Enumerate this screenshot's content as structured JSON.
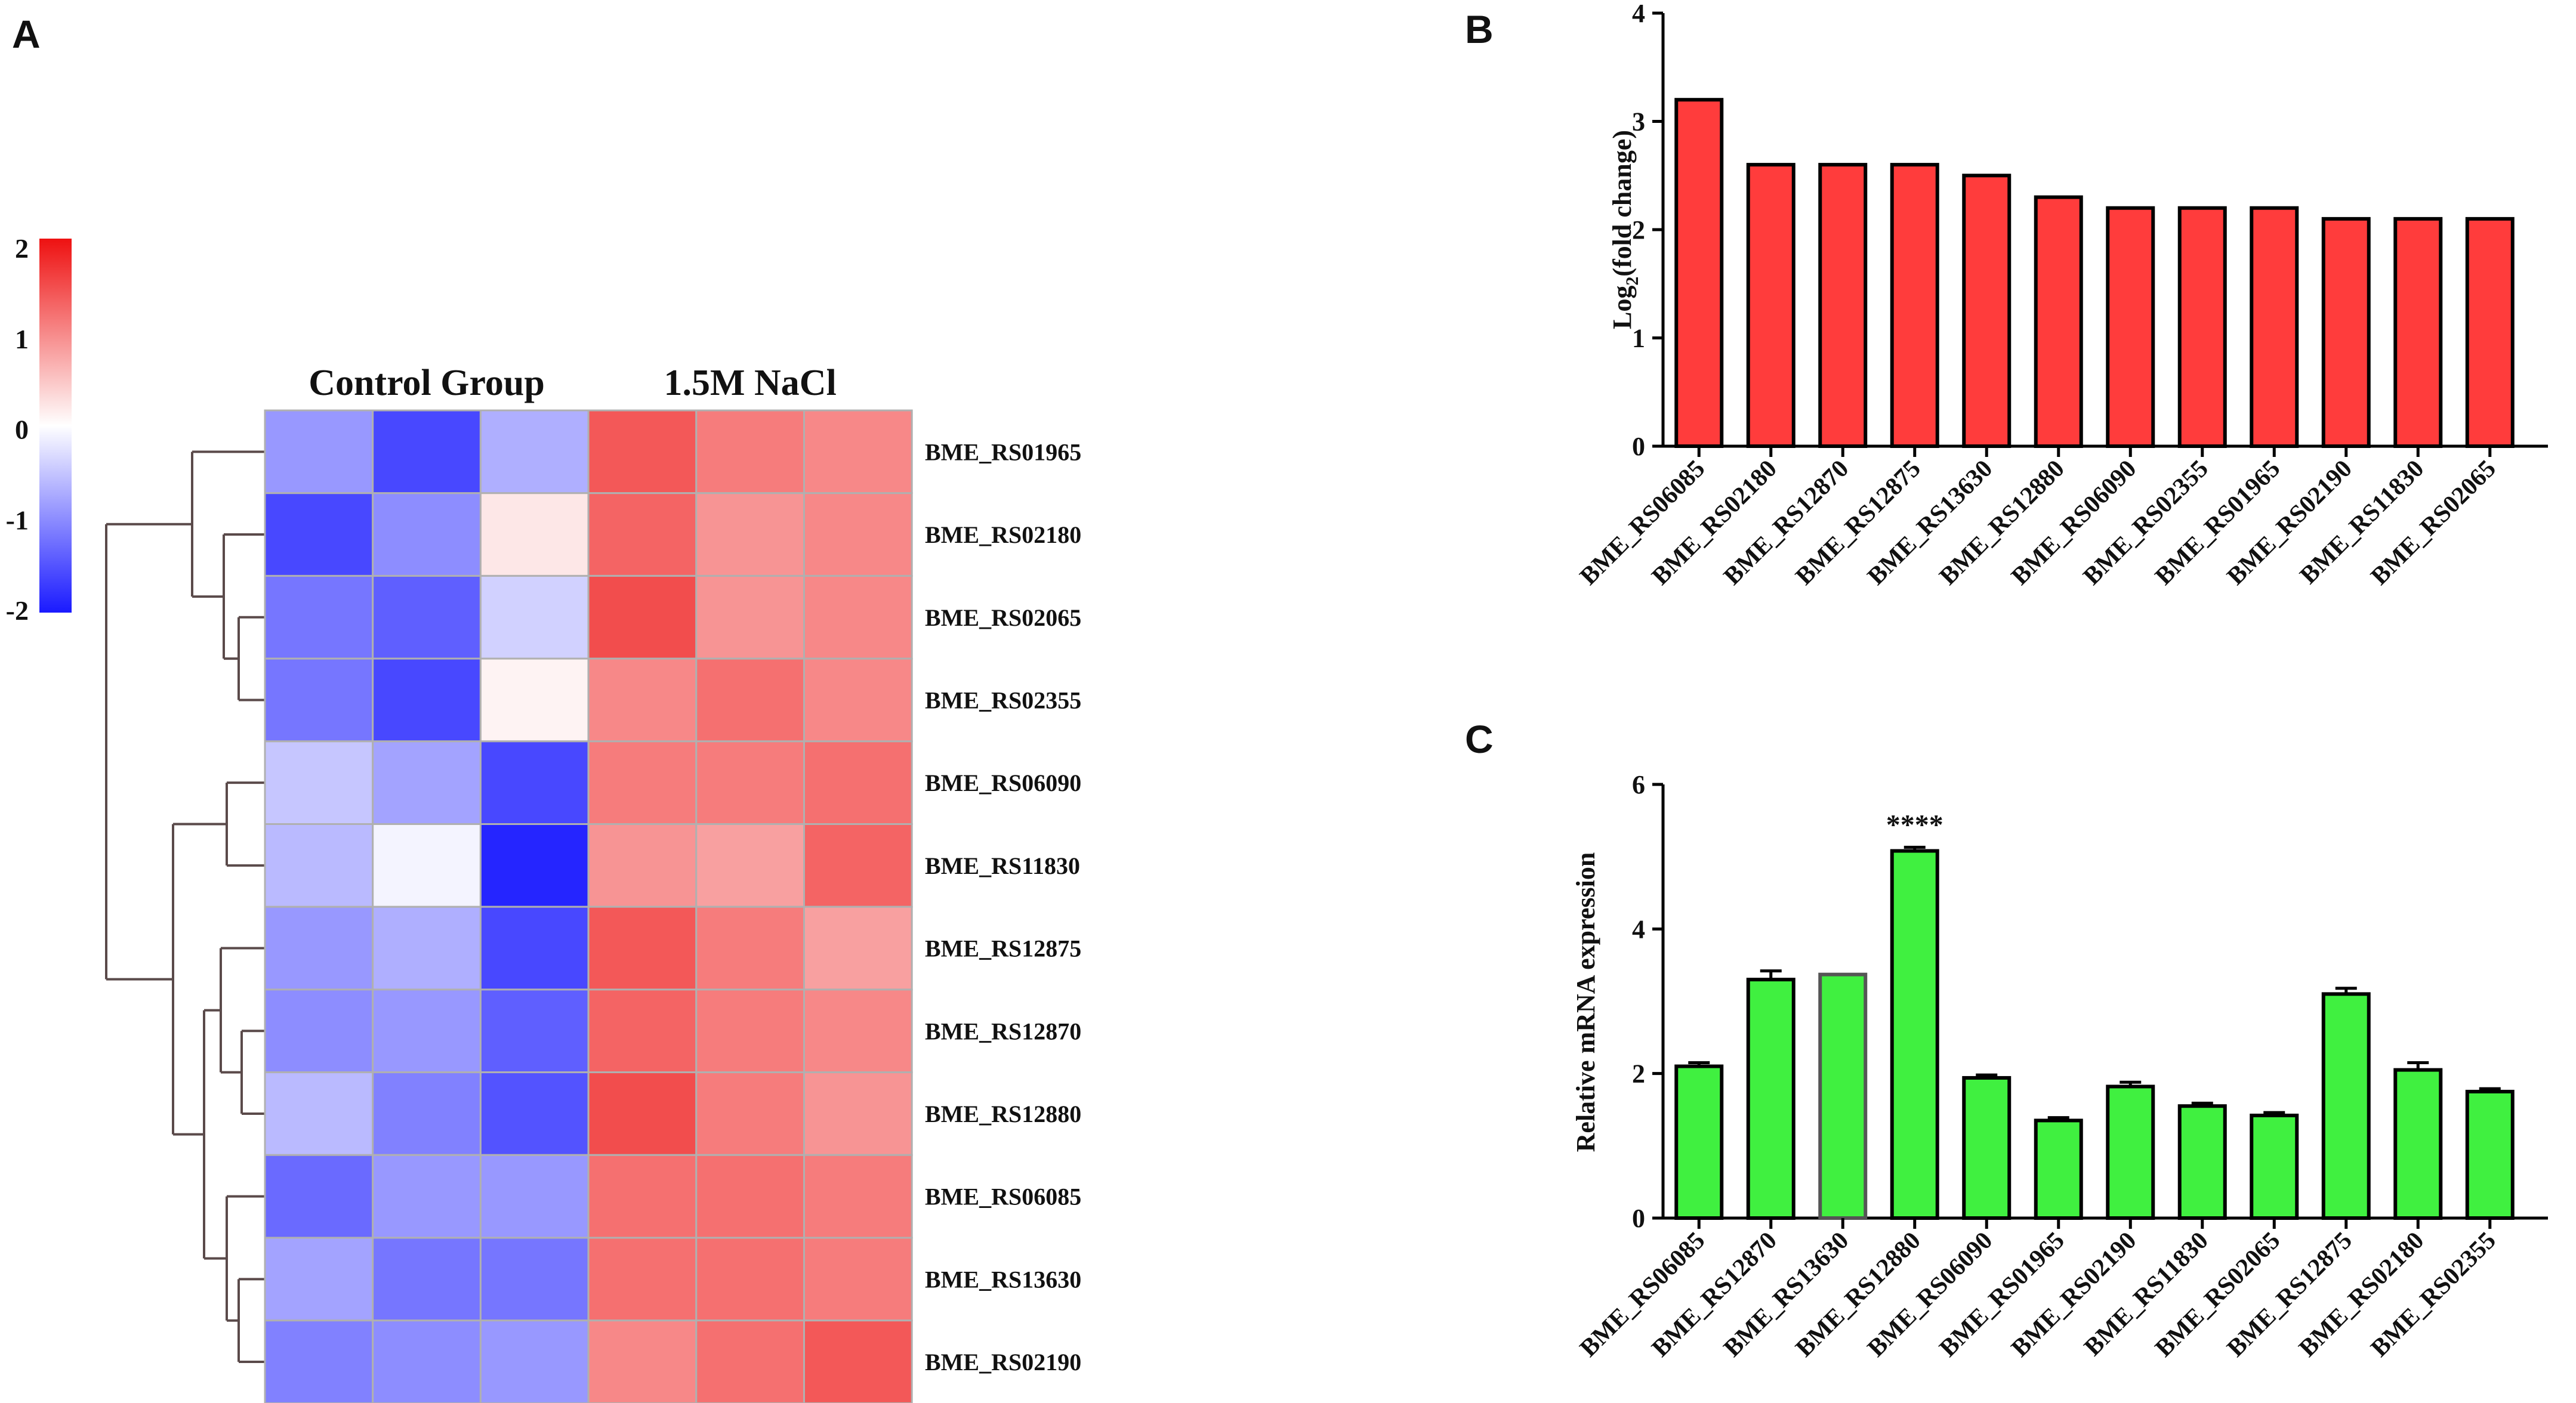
{
  "figure": {
    "panels": [
      {
        "id": "A",
        "label": "A"
      },
      {
        "id": "B",
        "label": "B"
      },
      {
        "id": "C",
        "label": "C"
      }
    ]
  },
  "chart_data": [
    {
      "panel": "A",
      "type": "heatmap",
      "column_groups": [
        "Control Group",
        "1.5M NaCl"
      ],
      "columns_per_group": 3,
      "rows": [
        "BME_RS01965",
        "BME_RS02180",
        "BME_RS02065",
        "BME_RS02355",
        "BME_RS06090",
        "BME_RS11830",
        "BME_RS12875",
        "BME_RS12870",
        "BME_RS12880",
        "BME_RS06085",
        "BME_RS13630",
        "BME_RS02190"
      ],
      "values": [
        [
          -0.9,
          -1.6,
          -0.7,
          1.4,
          1.1,
          1.0
        ],
        [
          -1.6,
          -1.0,
          0.2,
          1.3,
          0.9,
          1.0
        ],
        [
          -1.2,
          -1.4,
          -0.4,
          1.5,
          0.9,
          1.0
        ],
        [
          -1.2,
          -1.6,
          0.1,
          1.0,
          1.2,
          1.0
        ],
        [
          -0.5,
          -0.8,
          -1.6,
          1.1,
          1.1,
          1.2
        ],
        [
          -0.6,
          -0.1,
          -1.9,
          0.9,
          0.8,
          1.3
        ],
        [
          -0.9,
          -0.7,
          -1.6,
          1.4,
          1.1,
          0.8
        ],
        [
          -1.0,
          -0.9,
          -1.4,
          1.3,
          1.1,
          1.0
        ],
        [
          -0.6,
          -1.1,
          -1.5,
          1.5,
          1.1,
          0.9
        ],
        [
          -1.3,
          -0.9,
          -0.9,
          1.2,
          1.2,
          1.1
        ],
        [
          -0.8,
          -1.2,
          -1.2,
          1.2,
          1.2,
          1.1
        ],
        [
          -1.1,
          -1.0,
          -0.9,
          1.0,
          1.2,
          1.4
        ]
      ],
      "colorbar": {
        "ticks": [
          "2",
          "1",
          "0",
          "-1",
          "-2"
        ],
        "range": [
          -2,
          2
        ],
        "low_color": "#1a1aff",
        "mid_color": "#ffffff",
        "high_color": "#ee1111"
      },
      "dendrogram": "left"
    },
    {
      "panel": "B",
      "type": "bar",
      "ylabel": "Log2(fold change)",
      "ylabel_main": "Log",
      "ylabel_sub": "2",
      "ylabel_rest": "(fold change)",
      "ylim": [
        0,
        4
      ],
      "yticks": [
        "0",
        "1",
        "2",
        "3",
        "4"
      ],
      "categories": [
        "BME_RS06085",
        "BME_RS02180",
        "BME_RS12870",
        "BME_RS12875",
        "BME_RS13630",
        "BME_RS12880",
        "BME_RS06090",
        "BME_RS02355",
        "BME_RS01965",
        "BME_RS02190",
        "BME_RS11830",
        "BME_RS02065"
      ],
      "values": [
        3.2,
        2.6,
        2.6,
        2.6,
        2.5,
        2.3,
        2.2,
        2.2,
        2.2,
        2.1,
        2.1,
        2.1
      ],
      "bar_color": "#ff3c3c"
    },
    {
      "panel": "C",
      "type": "bar",
      "ylabel": "Relative mRNA expression",
      "ylim": [
        0,
        6
      ],
      "yticks": [
        "0",
        "2",
        "4",
        "6"
      ],
      "categories": [
        "BME_RS06085",
        "BME_RS12870",
        "BME_RS13630",
        "BME_RS12880",
        "BME_RS06090",
        "BME_RS01965",
        "BME_RS02190",
        "BME_RS11830",
        "BME_RS02065",
        "BME_RS12875",
        "BME_RS02180",
        "BME_RS02355"
      ],
      "values": [
        2.1,
        3.3,
        3.37,
        5.08,
        1.94,
        1.35,
        1.82,
        1.55,
        1.42,
        3.1,
        2.05,
        1.75
      ],
      "errors": [
        0.05,
        0.12,
        0.0,
        0.05,
        0.04,
        0.04,
        0.06,
        0.04,
        0.04,
        0.08,
        0.1,
        0.04
      ],
      "annotations": [
        {
          "category": "BME_RS12880",
          "text": "****"
        }
      ],
      "bar_color": "#40f040"
    }
  ]
}
